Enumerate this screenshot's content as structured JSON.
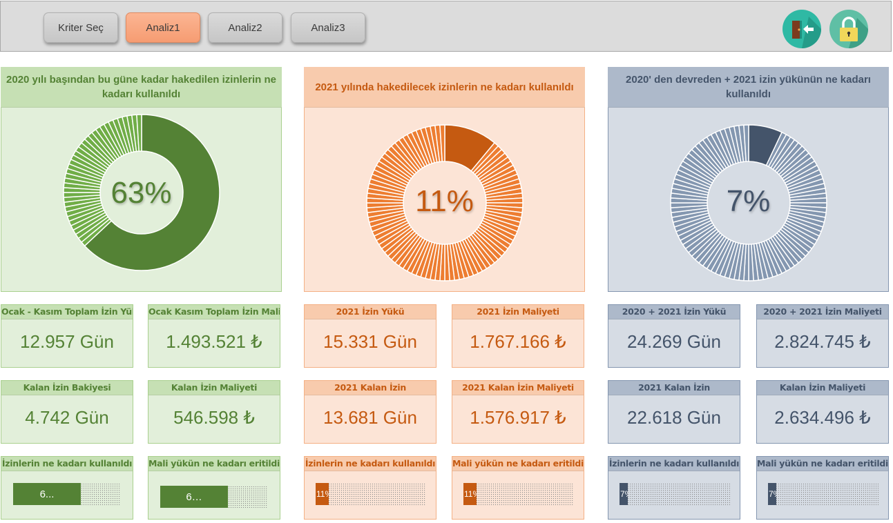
{
  "toolbar": {
    "buttons": [
      {
        "label": "Kriter Seç",
        "active": false
      },
      {
        "label": "Analiz1",
        "active": true
      },
      {
        "label": "Analiz2",
        "active": false
      },
      {
        "label": "Analiz3",
        "active": false
      }
    ],
    "icons": [
      {
        "name": "exit-door-icon"
      },
      {
        "name": "lock-icon"
      }
    ]
  },
  "panels": [
    {
      "theme": "green",
      "title": "2020 yılı başından bu güne kadar hakedilen izinlerin ne kadarı kullanıldı",
      "percent_label": "63%",
      "percent": 63,
      "colors": {
        "used": "#548235",
        "rest": "#70ad47"
      },
      "cards": [
        {
          "title": "Ocak - Kasım Toplam İzin Yükü",
          "value": "12.957 Gün"
        },
        {
          "title": "Ocak Kasım Toplam İzin Maliyeti",
          "value": "1.493.521 ₺"
        },
        {
          "title": "Kalan İzin Bakiyesi",
          "value": "4.742 Gün"
        },
        {
          "title": "Kalan İzin Maliyeti",
          "value": "546.598 ₺"
        }
      ],
      "progress": [
        {
          "title": "İzinlerin ne kadarı kullanıldı",
          "label": "6...",
          "percent": 63
        },
        {
          "title": "Mali yükün ne kadarı eritildi",
          "label": "6…",
          "percent": 63
        }
      ]
    },
    {
      "theme": "orange",
      "title": "2021 yılında hakedilecek izinlerin ne kadarı kullanıldı",
      "percent_label": "11%",
      "percent": 11,
      "colors": {
        "used": "#c55a11",
        "rest": "#ed7d31"
      },
      "cards": [
        {
          "title": "2021 İzin Yükü",
          "value": "15.331 Gün"
        },
        {
          "title": "2021 İzin Maliyeti",
          "value": "1.767.166 ₺"
        },
        {
          "title": "2021 Kalan İzin",
          "value": "13.681 Gün"
        },
        {
          "title": "2021 Kalan İzin Maliyeti",
          "value": "1.576.917 ₺"
        }
      ],
      "progress": [
        {
          "title": "İzinlerin ne kadarı kullanıldı",
          "label": "11%",
          "percent": 11
        },
        {
          "title": "Mali yükün ne kadarı eritildi",
          "label": "11%",
          "percent": 11
        }
      ]
    },
    {
      "theme": "blue",
      "title": "2020' den devreden + 2021 izin yükünün ne kadarı kullanıldı",
      "percent_label": "7%",
      "percent": 7,
      "colors": {
        "used": "#44546a",
        "rest": "#8497b0"
      },
      "cards": [
        {
          "title": "2020 + 2021 İzin Yükü",
          "value": "24.269 Gün"
        },
        {
          "title": "2020 + 2021 İzin Maliyeti",
          "value": "2.824.745 ₺"
        },
        {
          "title": "2021 Kalan İzin",
          "value": "22.618 Gün"
        },
        {
          "title": "Kalan İzin Maliyeti",
          "value": "2.634.496 ₺"
        }
      ],
      "progress": [
        {
          "title": "İzinlerin ne kadarı kullanıldı",
          "label": "7%",
          "percent": 7
        },
        {
          "title": "Mali yükün ne kadarı eritildi",
          "label": "7%",
          "percent": 7
        }
      ]
    }
  ]
}
